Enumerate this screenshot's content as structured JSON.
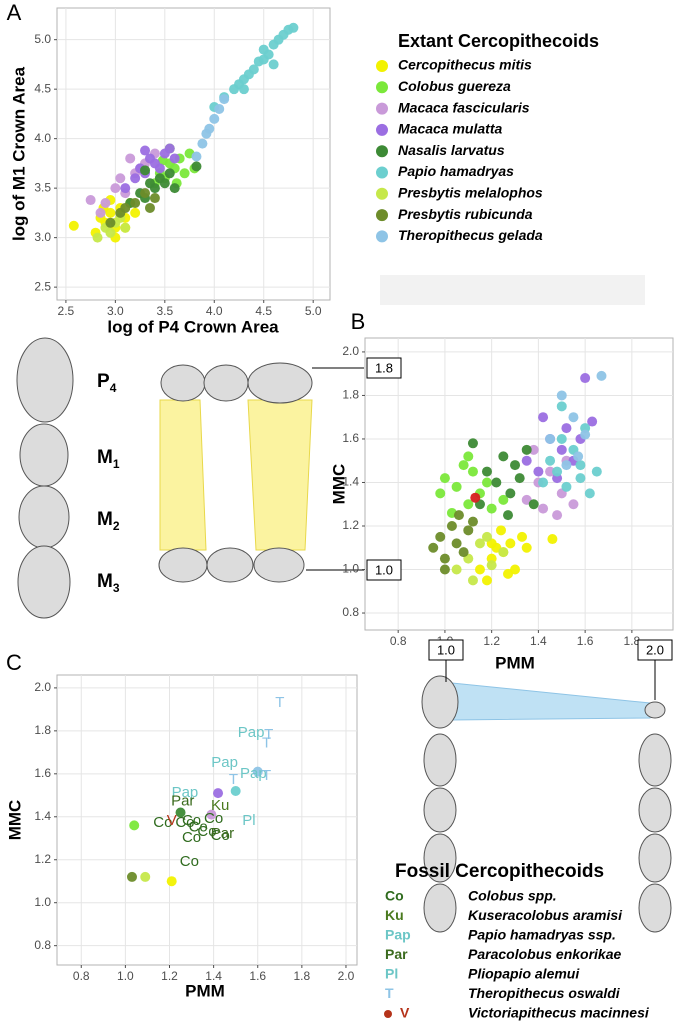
{
  "chart_data": [
    {
      "type": "scatter",
      "panel": "A",
      "xlabel": "log of P4 Crown Area",
      "ylabel": "log of M1 Crown Area",
      "legend_title": "Extant Cercopithecoids",
      "xlim": [
        2.41,
        5.17
      ],
      "ylim": [
        2.37,
        5.32
      ],
      "xticks": [
        2.5,
        {
          "value": 3,
          "label": "3.0"
        },
        3.5,
        {
          "value": 4,
          "label": "4.0"
        },
        4.5,
        {
          "value": 5,
          "label": "5.0"
        }
      ],
      "yticks": [
        2.5,
        {
          "value": 3,
          "label": "3.0"
        },
        3.5,
        {
          "value": 4,
          "label": "4.0"
        },
        4.5,
        {
          "value": 5,
          "label": "5.0"
        }
      ],
      "grid": true,
      "series": [
        {
          "name": "Cercopithecus mitis",
          "color": "#f2f200",
          "x": [
            2.58,
            2.8,
            2.85,
            2.9,
            2.95,
            3.0,
            3.05,
            3.1,
            3.15,
            2.88,
            3.0,
            3.2,
            2.95,
            3.1
          ],
          "values": [
            3.12,
            3.05,
            3.2,
            3.15,
            3.25,
            3.1,
            3.3,
            3.2,
            3.35,
            3.3,
            3.0,
            3.25,
            3.38,
            3.1
          ]
        },
        {
          "name": "Colobus guereza",
          "color": "#7be83a",
          "x": [
            3.4,
            3.45,
            3.5,
            3.55,
            3.6,
            3.65,
            3.7,
            3.75,
            3.8,
            3.55,
            3.62,
            3.48
          ],
          "values": [
            3.55,
            3.65,
            3.6,
            3.75,
            3.7,
            3.8,
            3.65,
            3.85,
            3.7,
            3.9,
            3.55,
            3.78
          ]
        },
        {
          "name": "Macaca fascicularis",
          "color": "#c99ad9",
          "x": [
            2.75,
            2.9,
            3.0,
            3.05,
            3.1,
            3.2,
            3.25,
            3.3,
            3.4,
            2.85,
            3.15
          ],
          "values": [
            3.38,
            3.35,
            3.5,
            3.6,
            3.45,
            3.65,
            3.7,
            3.75,
            3.85,
            3.25,
            3.8
          ]
        },
        {
          "name": "Macaca mulatta",
          "color": "#9b6ee2",
          "x": [
            3.1,
            3.2,
            3.25,
            3.3,
            3.35,
            3.4,
            3.5,
            3.55,
            3.6,
            3.45,
            3.3
          ],
          "values": [
            3.5,
            3.6,
            3.7,
            3.65,
            3.8,
            3.75,
            3.85,
            3.9,
            3.8,
            3.7,
            3.88
          ]
        },
        {
          "name": "Nasalis larvatus",
          "color": "#3d8a35",
          "x": [
            3.15,
            3.25,
            3.3,
            3.35,
            3.4,
            3.45,
            3.5,
            3.55,
            3.3,
            3.82,
            3.6
          ],
          "values": [
            3.35,
            3.45,
            3.4,
            3.55,
            3.5,
            3.6,
            3.55,
            3.65,
            3.68,
            3.72,
            3.5
          ]
        },
        {
          "name": "Papio hamadryas",
          "color": "#6ccfcf",
          "x": [
            4.0,
            4.1,
            4.2,
            4.25,
            4.3,
            4.35,
            4.4,
            4.45,
            4.5,
            4.55,
            4.6,
            4.65,
            4.7,
            4.75,
            4.8,
            4.5,
            4.3,
            4.6
          ],
          "values": [
            4.32,
            4.42,
            4.5,
            4.55,
            4.6,
            4.65,
            4.7,
            4.78,
            4.8,
            4.85,
            4.95,
            5.0,
            5.05,
            5.1,
            5.12,
            4.9,
            4.5,
            4.75
          ]
        },
        {
          "name": "Presbytis melalophos",
          "color": "#c6e84a",
          "x": [
            2.82,
            2.9,
            2.95,
            3.0,
            3.05,
            3.1
          ],
          "values": [
            3.0,
            3.1,
            3.05,
            3.15,
            3.2,
            3.1
          ]
        },
        {
          "name": "Presbytis rubicunda",
          "color": "#6d8c2a",
          "x": [
            2.95,
            3.05,
            3.1,
            3.2,
            3.3,
            3.35,
            3.4
          ],
          "values": [
            3.15,
            3.25,
            3.3,
            3.35,
            3.45,
            3.3,
            3.4
          ]
        },
        {
          "name": "Theropithecus gelada",
          "color": "#8ec4e6",
          "x": [
            3.82,
            3.88,
            3.92,
            3.95,
            4.0,
            4.05,
            4.1
          ],
          "values": [
            3.82,
            3.95,
            4.05,
            4.1,
            4.2,
            4.3,
            4.4
          ]
        }
      ]
    },
    {
      "type": "scatter",
      "panel": "B",
      "xlabel": "PMM",
      "ylabel": "MMC",
      "xlim": [
        0.658,
        1.976
      ],
      "ylim": [
        0.722,
        2.064
      ],
      "xticks": [
        0.8,
        {
          "value": 1,
          "label": "1.0"
        },
        1.2,
        1.4,
        1.6,
        1.8
      ],
      "yticks": [
        0.8,
        {
          "value": 1,
          "label": "1.0"
        },
        1.2,
        1.4,
        1.6,
        1.8,
        {
          "value": 2,
          "label": "2.0"
        }
      ],
      "grid": true,
      "series": [
        {
          "color": "#f2f200",
          "x": [
            1.15,
            1.2,
            1.22,
            1.25,
            1.28,
            1.3,
            1.33,
            1.18,
            1.24,
            1.35,
            1.27,
            1.46,
            1.2
          ],
          "values": [
            1.0,
            1.05,
            1.1,
            1.08,
            1.12,
            1.0,
            1.15,
            0.95,
            1.18,
            1.1,
            0.98,
            1.14,
            1.12
          ]
        },
        {
          "color": "#7be83a",
          "x": [
            0.98,
            1.0,
            1.05,
            1.08,
            1.1,
            1.12,
            1.15,
            1.18,
            1.2,
            1.25,
            1.03,
            1.1
          ],
          "values": [
            1.35,
            1.42,
            1.38,
            1.48,
            1.3,
            1.45,
            1.35,
            1.4,
            1.28,
            1.32,
            1.26,
            1.52
          ]
        },
        {
          "color": "#c99ad9",
          "x": [
            1.35,
            1.4,
            1.42,
            1.45,
            1.5,
            1.52,
            1.55,
            1.38,
            1.48
          ],
          "values": [
            1.32,
            1.4,
            1.28,
            1.45,
            1.35,
            1.5,
            1.3,
            1.55,
            1.25
          ]
        },
        {
          "color": "#9b6ee2",
          "x": [
            1.35,
            1.4,
            1.45,
            1.5,
            1.52,
            1.55,
            1.58,
            1.6,
            1.42,
            1.48,
            1.63
          ],
          "values": [
            1.5,
            1.45,
            1.6,
            1.55,
            1.65,
            1.5,
            1.6,
            1.88,
            1.7,
            1.42,
            1.68
          ]
        },
        {
          "color": "#3d8a35",
          "x": [
            1.12,
            1.18,
            1.22,
            1.25,
            1.28,
            1.3,
            1.32,
            1.35,
            1.38,
            1.15,
            1.27
          ],
          "values": [
            1.58,
            1.45,
            1.4,
            1.52,
            1.35,
            1.48,
            1.42,
            1.55,
            1.3,
            1.3,
            1.25
          ]
        },
        {
          "color": "#6ccfcf",
          "x": [
            1.42,
            1.45,
            1.48,
            1.5,
            1.52,
            1.55,
            1.58,
            1.6,
            1.62,
            1.65,
            1.5,
            1.58
          ],
          "values": [
            1.4,
            1.5,
            1.45,
            1.6,
            1.38,
            1.55,
            1.48,
            1.65,
            1.35,
            1.45,
            1.75,
            1.42
          ]
        },
        {
          "color": "#c6e84a",
          "x": [
            1.05,
            1.1,
            1.15,
            1.2,
            1.25,
            1.12,
            1.18
          ],
          "values": [
            1.0,
            1.05,
            1.12,
            1.02,
            1.08,
            0.95,
            1.15
          ]
        },
        {
          "color": "#6d8c2a",
          "x": [
            0.95,
            0.98,
            1.0,
            1.03,
            1.05,
            1.08,
            1.1,
            1.12,
            1.0,
            1.06
          ],
          "values": [
            1.1,
            1.15,
            1.05,
            1.2,
            1.12,
            1.08,
            1.18,
            1.22,
            1.0,
            1.25
          ]
        },
        {
          "color": "#8ec4e6",
          "x": [
            1.45,
            1.5,
            1.55,
            1.6,
            1.67,
            1.52,
            1.57
          ],
          "values": [
            1.6,
            1.8,
            1.7,
            1.62,
            1.89,
            1.48,
            1.52
          ]
        },
        {
          "color": "#d62020",
          "x": [
            1.13
          ],
          "values": [
            1.33
          ]
        }
      ]
    },
    {
      "type": "scatter",
      "panel": "C",
      "xlabel": "PMM",
      "ylabel": "MMC",
      "legend_title": "Fossil Cercopithecoids",
      "xlim": [
        0.69,
        2.05
      ],
      "ylim": [
        0.71,
        2.06
      ],
      "xticks": [
        0.8,
        {
          "value": 1,
          "label": "1.0"
        },
        1.2,
        1.4,
        1.6,
        1.8,
        {
          "value": 2,
          "label": "2.0"
        }
      ],
      "yticks": [
        0.8,
        {
          "value": 1,
          "label": "1.0"
        },
        1.2,
        1.4,
        1.6,
        1.8,
        {
          "value": 2,
          "label": "2.0"
        }
      ],
      "grid": true,
      "series": [
        {
          "color": "#f2f200",
          "x": [
            1.21
          ],
          "values": [
            1.1
          ]
        },
        {
          "color": "#7be83a",
          "x": [
            1.04
          ],
          "values": [
            1.36
          ]
        },
        {
          "color": "#c99ad9",
          "x": [
            1.39
          ],
          "values": [
            1.41
          ]
        },
        {
          "color": "#9b6ee2",
          "x": [
            1.42
          ],
          "values": [
            1.51
          ]
        },
        {
          "color": "#3d8a35",
          "x": [
            1.25
          ],
          "values": [
            1.42
          ]
        },
        {
          "color": "#6ccfcf",
          "x": [
            1.5
          ],
          "values": [
            1.52
          ]
        },
        {
          "color": "#c6e84a",
          "x": [
            1.09
          ],
          "values": [
            1.12
          ]
        },
        {
          "color": "#6d8c2a",
          "x": [
            1.03
          ],
          "values": [
            1.12
          ]
        },
        {
          "color": "#8ec4e6",
          "x": [
            1.6
          ],
          "values": [
            1.61
          ]
        }
      ],
      "fossils": [
        {
          "name": "Co",
          "full_name": "Colobus spp.",
          "color": "#2f6b1e",
          "x": [
            1.17,
            1.3,
            1.33,
            1.37,
            1.4,
            1.43,
            1.3,
            1.29,
            1.27
          ],
          "values": [
            1.37,
            1.38,
            1.35,
            1.33,
            1.39,
            1.31,
            1.3,
            1.19,
            1.37
          ]
        },
        {
          "name": "Ku",
          "full_name": "Kuseracolobus aramisi",
          "color": "#4a7a1e",
          "x": [
            1.43
          ],
          "values": [
            1.45
          ]
        },
        {
          "name": "Pap",
          "full_name": "Papio hamadryas ssp.",
          "color": "#6cc6c6",
          "x": [
            1.57,
            1.45,
            1.27,
            1.58
          ],
          "values": [
            1.79,
            1.65,
            1.51,
            1.6
          ]
        },
        {
          "name": "Par",
          "full_name": "Paracolobus enkorikae",
          "color": "#3b6b1e",
          "x": [
            1.26,
            1.44
          ],
          "values": [
            1.47,
            1.32
          ]
        },
        {
          "name": "Pl",
          "full_name": "Pliopapio alemui",
          "color": "#6cc6c6",
          "x": [
            1.56
          ],
          "values": [
            1.38
          ]
        },
        {
          "name": "T",
          "full_name": "Theropithecus oswaldi",
          "color": "#8ec4e6",
          "x": [
            1.7,
            1.65,
            1.64,
            1.49,
            1.64
          ],
          "values": [
            1.93,
            1.78,
            1.74,
            1.57,
            1.59
          ]
        },
        {
          "name": "V",
          "full_name": "Victoriapithecus macinnesi",
          "color": "#b5331a",
          "legend_dot": true,
          "x": [
            1.21
          ],
          "values": [
            1.38
          ]
        }
      ]
    }
  ],
  "diagram": {
    "teeth_labels": [
      {
        "base": "P",
        "sub": "4"
      },
      {
        "base": "M",
        "sub": "1"
      },
      {
        "base": "M",
        "sub": "2"
      },
      {
        "base": "M",
        "sub": "3"
      }
    ],
    "boxes": [
      "1.8",
      "1.0",
      "1.0",
      "2.0"
    ]
  }
}
